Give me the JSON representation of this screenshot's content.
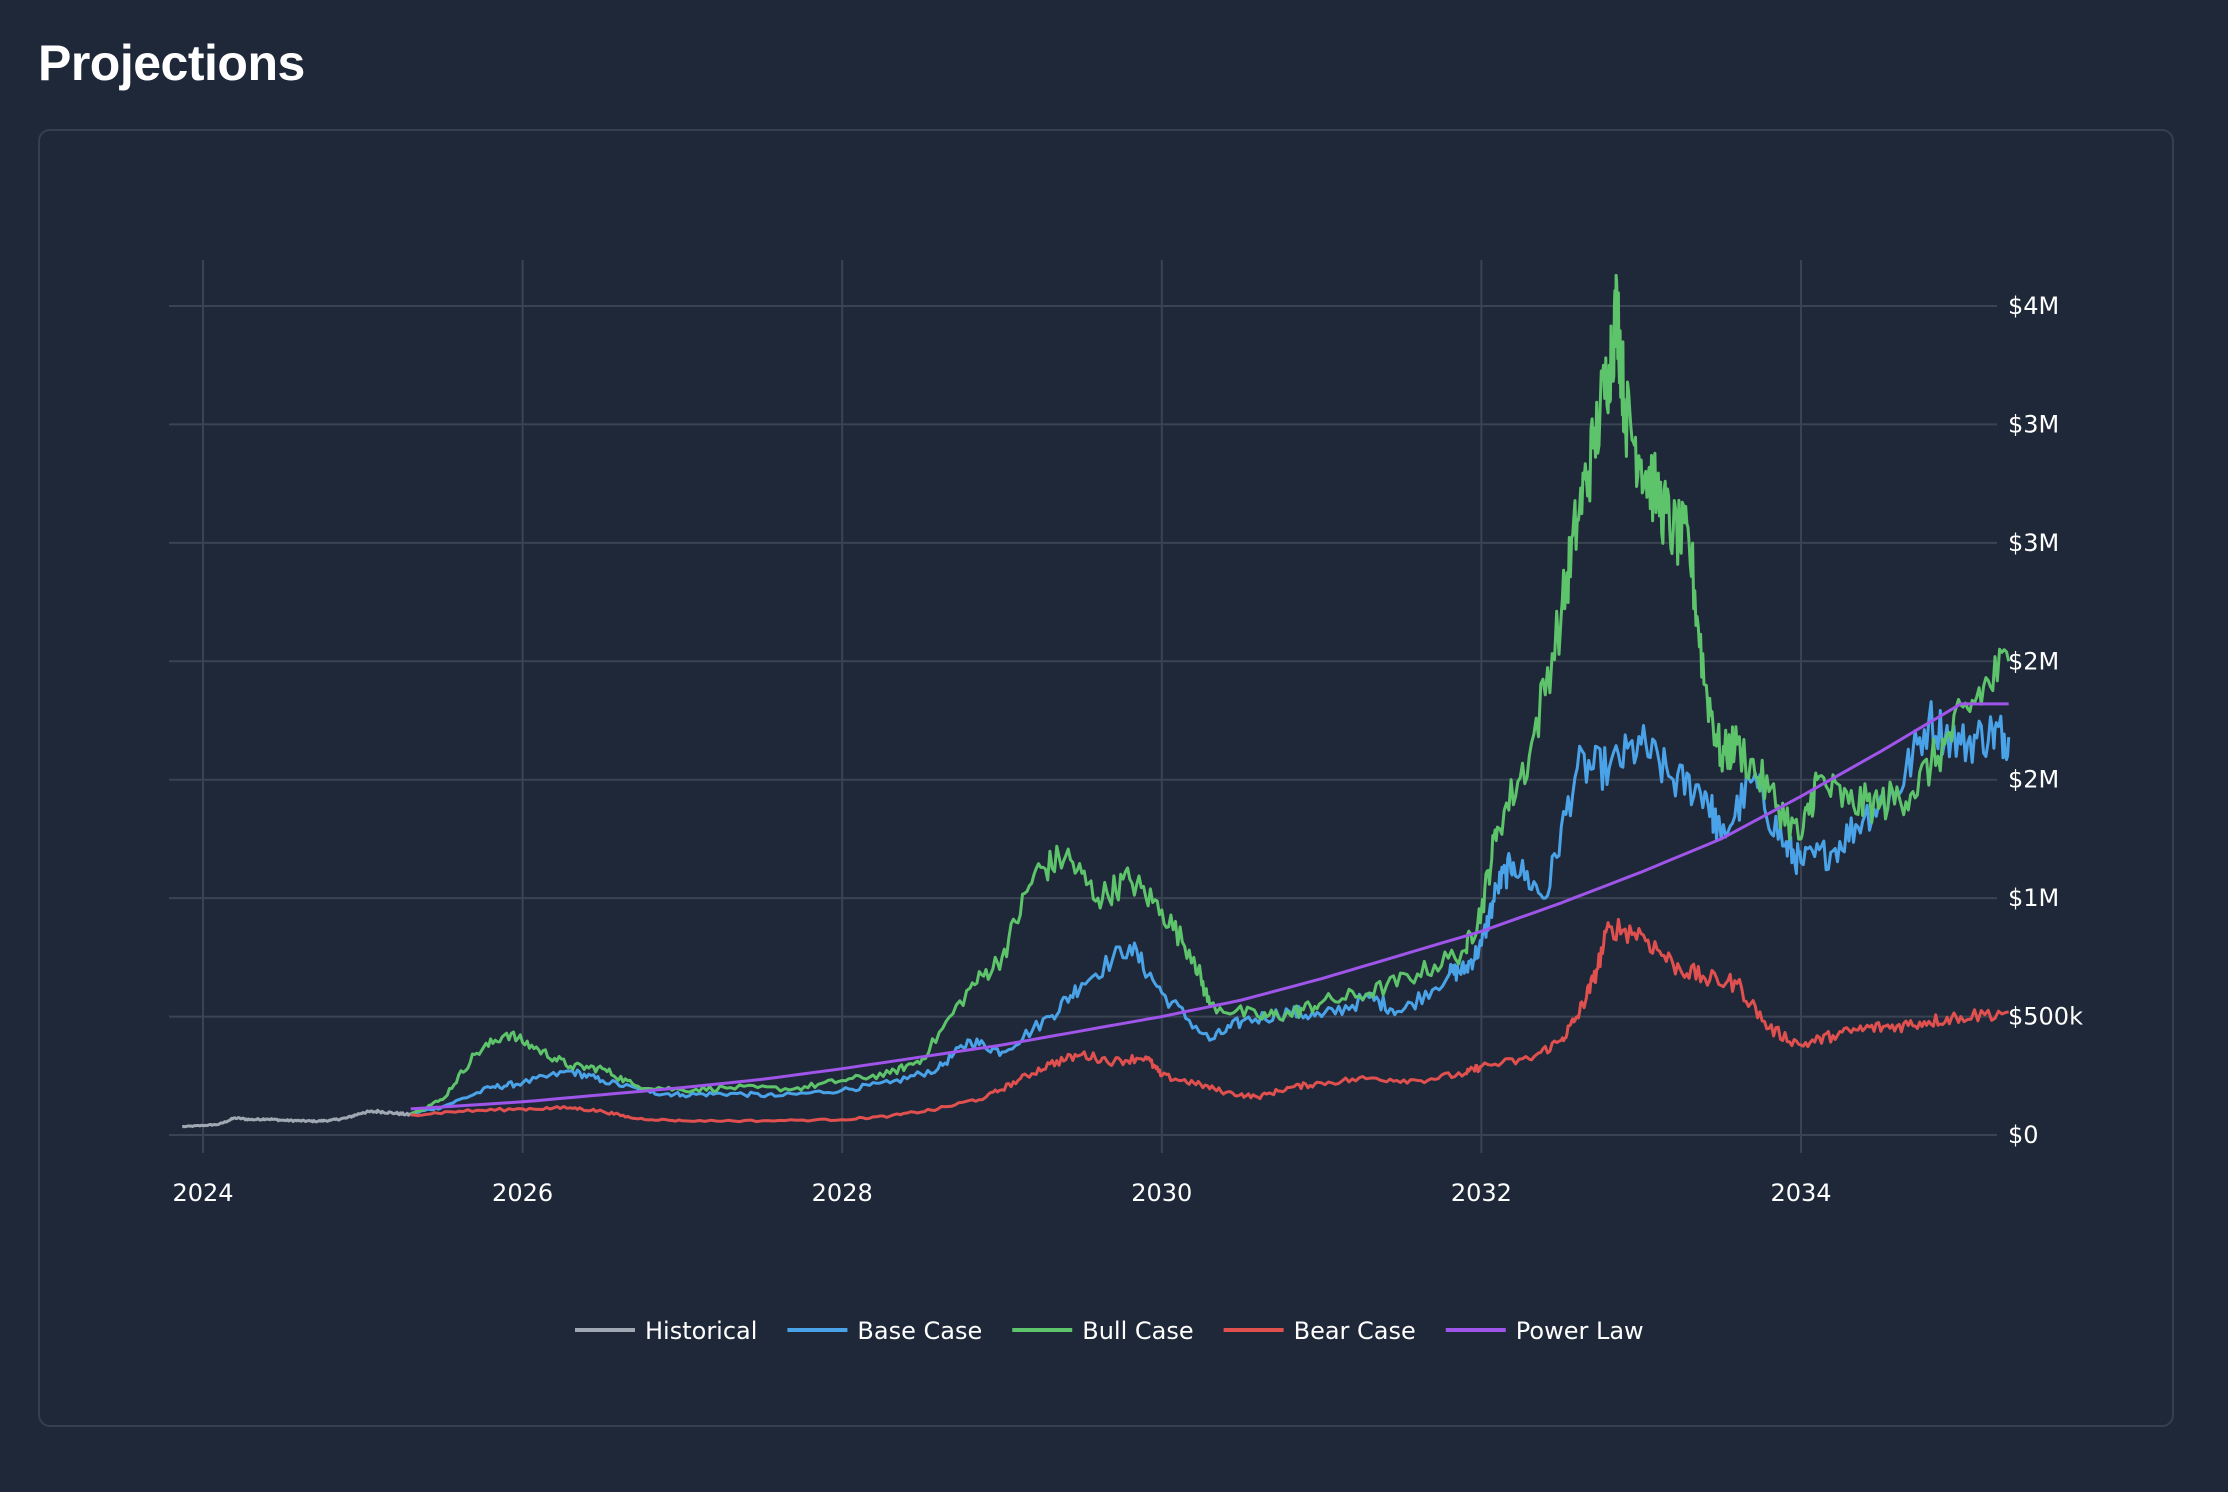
{
  "page": {
    "title": "Projections"
  },
  "chart_data": {
    "type": "line",
    "title": "",
    "xlabel": "",
    "ylabel": "",
    "x_range": [
      2023.9,
      2035.3
    ],
    "x_ticks": [
      2024,
      2026,
      2028,
      2030,
      2032,
      2034
    ],
    "x_tick_labels": [
      "2024",
      "2026",
      "2028",
      "2030",
      "2032",
      "2034"
    ],
    "ylim": [
      0,
      4200000
    ],
    "y_ticks": [
      0,
      500000,
      1000000,
      1500000,
      2000000,
      2500000,
      3000000,
      3500000
    ],
    "y_tick_labels": [
      "$0",
      "$500k",
      "$1M",
      "$2M",
      "$2M",
      "$3M",
      "$3M",
      "$4M"
    ],
    "y_axis_side": "right",
    "grid": true,
    "legend_position": "bottom-center",
    "series": [
      {
        "name": "Historical",
        "color": "#a0a8b3",
        "points": [
          [
            2023.87,
            35000
          ],
          [
            2024.0,
            40000
          ],
          [
            2024.1,
            45000
          ],
          [
            2024.2,
            72000
          ],
          [
            2024.3,
            65000
          ],
          [
            2024.4,
            68000
          ],
          [
            2024.5,
            62000
          ],
          [
            2024.6,
            60000
          ],
          [
            2024.7,
            58000
          ],
          [
            2024.8,
            62000
          ],
          [
            2024.9,
            72000
          ],
          [
            2025.0,
            95000
          ],
          [
            2025.1,
            100000
          ],
          [
            2025.2,
            92000
          ],
          [
            2025.3,
            85000
          ]
        ]
      },
      {
        "name": "Base Case",
        "color": "#4aa3e8",
        "points": [
          [
            2025.3,
            90000
          ],
          [
            2025.5,
            120000
          ],
          [
            2025.8,
            200000
          ],
          [
            2026.0,
            220000
          ],
          [
            2026.3,
            270000
          ],
          [
            2026.5,
            230000
          ],
          [
            2026.8,
            180000
          ],
          [
            2027.0,
            170000
          ],
          [
            2027.3,
            175000
          ],
          [
            2027.6,
            165000
          ],
          [
            2028.0,
            190000
          ],
          [
            2028.3,
            220000
          ],
          [
            2028.6,
            280000
          ],
          [
            2028.8,
            400000
          ],
          [
            2029.0,
            350000
          ],
          [
            2029.3,
            500000
          ],
          [
            2029.5,
            640000
          ],
          [
            2029.8,
            800000
          ],
          [
            2030.0,
            600000
          ],
          [
            2030.3,
            400000
          ],
          [
            2030.5,
            480000
          ],
          [
            2030.8,
            520000
          ],
          [
            2031.0,
            500000
          ],
          [
            2031.3,
            580000
          ],
          [
            2031.5,
            520000
          ],
          [
            2031.8,
            680000
          ],
          [
            2031.9,
            700000
          ],
          [
            2032.0,
            800000
          ],
          [
            2032.1,
            1050000
          ],
          [
            2032.2,
            1150000
          ],
          [
            2032.4,
            1000000
          ],
          [
            2032.6,
            1550000
          ],
          [
            2032.8,
            1550000
          ],
          [
            2033.0,
            1650000
          ],
          [
            2033.2,
            1500000
          ],
          [
            2033.4,
            1450000
          ],
          [
            2033.5,
            1250000
          ],
          [
            2033.7,
            1500000
          ],
          [
            2033.9,
            1220000
          ],
          [
            2034.0,
            1150000
          ],
          [
            2034.2,
            1200000
          ],
          [
            2034.4,
            1350000
          ],
          [
            2034.6,
            1450000
          ],
          [
            2034.8,
            1750000
          ],
          [
            2035.0,
            1650000
          ],
          [
            2035.2,
            1700000
          ],
          [
            2035.3,
            1680000
          ]
        ]
      },
      {
        "name": "Bull Case",
        "color": "#5ec46b",
        "points": [
          [
            2025.3,
            90000
          ],
          [
            2025.5,
            150000
          ],
          [
            2025.7,
            340000
          ],
          [
            2025.9,
            430000
          ],
          [
            2026.1,
            360000
          ],
          [
            2026.3,
            290000
          ],
          [
            2026.5,
            280000
          ],
          [
            2026.7,
            210000
          ],
          [
            2027.0,
            190000
          ],
          [
            2027.3,
            200000
          ],
          [
            2027.7,
            195000
          ],
          [
            2028.0,
            230000
          ],
          [
            2028.3,
            260000
          ],
          [
            2028.5,
            320000
          ],
          [
            2028.8,
            620000
          ],
          [
            2029.0,
            750000
          ],
          [
            2029.2,
            1100000
          ],
          [
            2029.4,
            1180000
          ],
          [
            2029.6,
            1000000
          ],
          [
            2029.8,
            1080000
          ],
          [
            2030.0,
            950000
          ],
          [
            2030.2,
            750000
          ],
          [
            2030.3,
            550000
          ],
          [
            2030.6,
            500000
          ],
          [
            2030.8,
            510000
          ],
          [
            2031.0,
            560000
          ],
          [
            2031.3,
            600000
          ],
          [
            2031.6,
            680000
          ],
          [
            2031.9,
            780000
          ],
          [
            2032.0,
            950000
          ],
          [
            2032.1,
            1300000
          ],
          [
            2032.3,
            1600000
          ],
          [
            2032.5,
            2200000
          ],
          [
            2032.6,
            2600000
          ],
          [
            2032.7,
            2900000
          ],
          [
            2032.8,
            3250000
          ],
          [
            2032.85,
            3500000
          ],
          [
            2032.9,
            3050000
          ],
          [
            2033.0,
            2850000
          ],
          [
            2033.1,
            2700000
          ],
          [
            2033.2,
            2550000
          ],
          [
            2033.3,
            2500000
          ],
          [
            2033.4,
            1900000
          ],
          [
            2033.5,
            1600000
          ],
          [
            2033.6,
            1650000
          ],
          [
            2033.8,
            1450000
          ],
          [
            2034.0,
            1250000
          ],
          [
            2034.1,
            1500000
          ],
          [
            2034.3,
            1400000
          ],
          [
            2034.5,
            1400000
          ],
          [
            2034.7,
            1450000
          ],
          [
            2034.9,
            1650000
          ],
          [
            2035.1,
            1850000
          ],
          [
            2035.3,
            2000000
          ]
        ]
      },
      {
        "name": "Bear Case",
        "color": "#e0504f",
        "points": [
          [
            2025.3,
            85000
          ],
          [
            2025.6,
            100000
          ],
          [
            2026.0,
            110000
          ],
          [
            2026.3,
            115000
          ],
          [
            2026.5,
            100000
          ],
          [
            2026.7,
            70000
          ],
          [
            2027.0,
            60000
          ],
          [
            2027.5,
            60000
          ],
          [
            2028.0,
            65000
          ],
          [
            2028.3,
            80000
          ],
          [
            2028.6,
            110000
          ],
          [
            2028.9,
            160000
          ],
          [
            2029.1,
            230000
          ],
          [
            2029.3,
            300000
          ],
          [
            2029.5,
            340000
          ],
          [
            2029.7,
            310000
          ],
          [
            2029.9,
            330000
          ],
          [
            2030.0,
            250000
          ],
          [
            2030.2,
            220000
          ],
          [
            2030.4,
            180000
          ],
          [
            2030.6,
            160000
          ],
          [
            2030.8,
            200000
          ],
          [
            2031.0,
            220000
          ],
          [
            2031.3,
            240000
          ],
          [
            2031.6,
            230000
          ],
          [
            2031.9,
            260000
          ],
          [
            2032.0,
            290000
          ],
          [
            2032.3,
            320000
          ],
          [
            2032.5,
            400000
          ],
          [
            2032.6,
            500000
          ],
          [
            2032.7,
            650000
          ],
          [
            2032.8,
            880000
          ],
          [
            2033.0,
            850000
          ],
          [
            2033.2,
            720000
          ],
          [
            2033.4,
            660000
          ],
          [
            2033.6,
            640000
          ],
          [
            2033.8,
            450000
          ],
          [
            2034.0,
            380000
          ],
          [
            2034.2,
            420000
          ],
          [
            2034.4,
            450000
          ],
          [
            2034.6,
            460000
          ],
          [
            2034.8,
            480000
          ],
          [
            2035.0,
            500000
          ],
          [
            2035.3,
            520000
          ]
        ]
      },
      {
        "name": "Power Law",
        "color": "#9f55ea",
        "points": [
          [
            2025.3,
            110000
          ],
          [
            2026.0,
            140000
          ],
          [
            2026.5,
            170000
          ],
          [
            2027.0,
            200000
          ],
          [
            2027.5,
            235000
          ],
          [
            2028.0,
            280000
          ],
          [
            2028.5,
            330000
          ],
          [
            2029.0,
            380000
          ],
          [
            2029.5,
            440000
          ],
          [
            2030.0,
            500000
          ],
          [
            2030.5,
            570000
          ],
          [
            2031.0,
            660000
          ],
          [
            2031.5,
            760000
          ],
          [
            2032.0,
            860000
          ],
          [
            2032.5,
            980000
          ],
          [
            2033.0,
            1110000
          ],
          [
            2033.5,
            1250000
          ],
          [
            2034.0,
            1430000
          ],
          [
            2034.5,
            1620000
          ],
          [
            2035.0,
            1820000
          ],
          [
            2035.3,
            1820000
          ]
        ]
      }
    ]
  }
}
